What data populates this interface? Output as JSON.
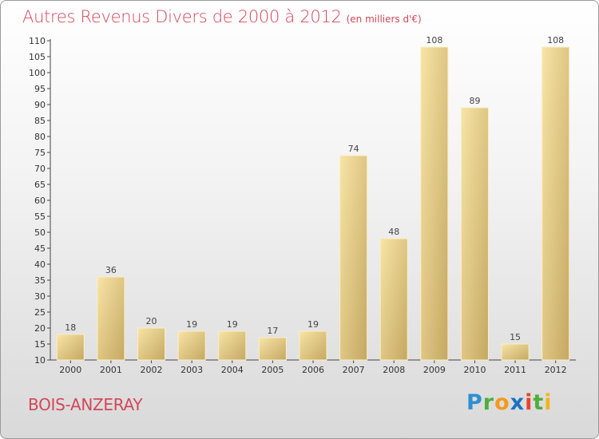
{
  "header": {
    "title": "Autres Revenus Divers de 2000 à 2012",
    "unit": "(en milliers d'€)"
  },
  "footer": {
    "commune": "BOIS-ANZERAY",
    "logo_text": "Proxiti"
  },
  "colors": {
    "title": "#d2475a",
    "bar_light": "#f5dc97",
    "bar_dark": "#c8ad64",
    "axis": "#555555"
  },
  "chart_data": {
    "type": "bar",
    "title": "Autres Revenus Divers de 2000 à 2012",
    "subtitle": "(en milliers d'€)",
    "xlabel": "",
    "ylabel": "",
    "categories": [
      "2000",
      "2001",
      "2002",
      "2003",
      "2004",
      "2005",
      "2006",
      "2007",
      "2008",
      "2009",
      "2010",
      "2011",
      "2012"
    ],
    "values": [
      18,
      36,
      20,
      19,
      19,
      17,
      19,
      74,
      48,
      108,
      89,
      15,
      108
    ],
    "ylim": [
      10,
      110
    ],
    "yticks": [
      10,
      15,
      20,
      25,
      30,
      35,
      40,
      45,
      50,
      55,
      60,
      65,
      70,
      75,
      80,
      85,
      90,
      95,
      100,
      105,
      110
    ],
    "grid": false,
    "legend": "none"
  }
}
